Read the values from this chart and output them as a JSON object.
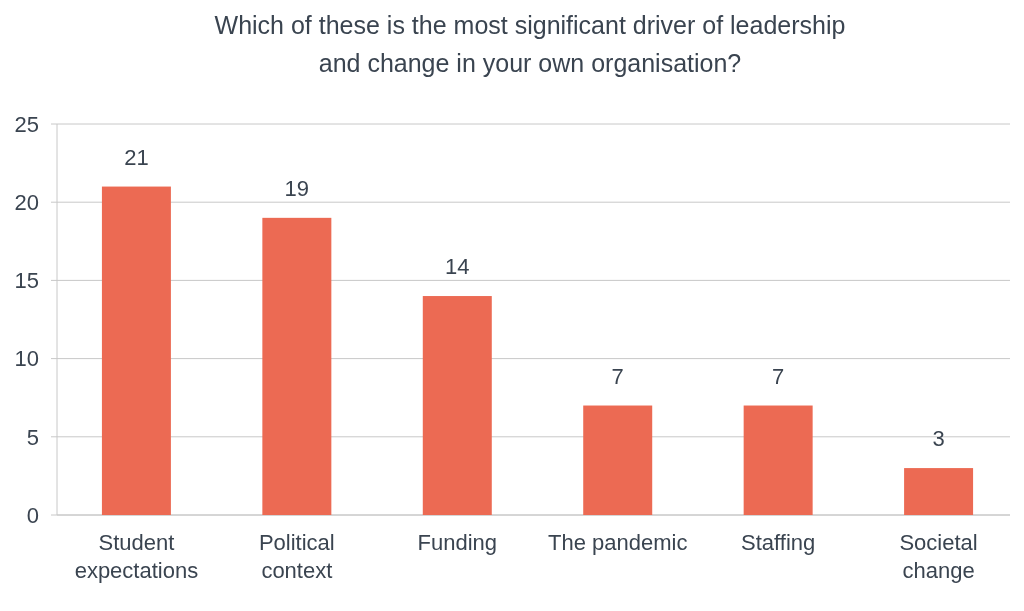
{
  "chart_data": {
    "type": "bar",
    "title": "Which of these is the most significant driver of leadership and change in your own organisation?",
    "categories": [
      "Student expectations",
      "Political context",
      "Funding",
      "The pandemic",
      "Staffing",
      "Societal change"
    ],
    "values": [
      21,
      19,
      14,
      7,
      7,
      3
    ],
    "color": "#ec6a53",
    "ylim": [
      0,
      25
    ],
    "yticks": [
      0,
      5,
      10,
      15,
      20,
      25
    ],
    "grid": "y",
    "data_labels": true
  }
}
